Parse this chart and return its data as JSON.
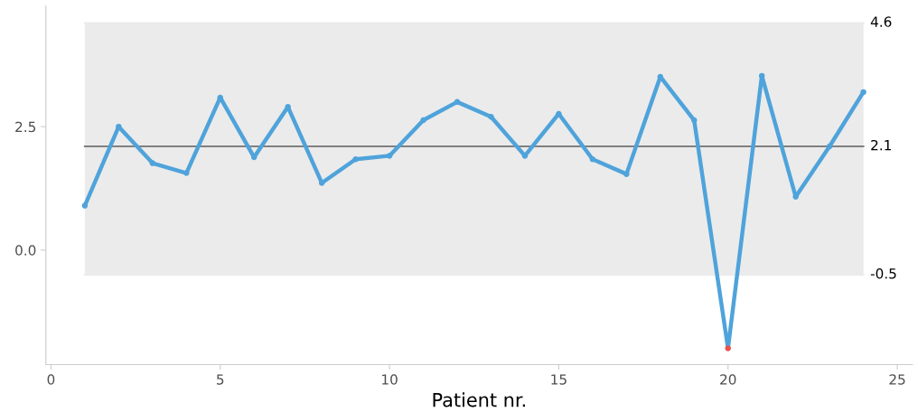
{
  "chart_data": {
    "type": "line",
    "xlabel": "Patient nr.",
    "x": [
      1,
      2,
      3,
      4,
      5,
      6,
      7,
      8,
      9,
      10,
      11,
      12,
      13,
      14,
      15,
      16,
      17,
      18,
      19,
      20,
      21,
      22,
      23,
      24
    ],
    "series": [
      {
        "color": "#4fa3db",
        "colors": [
          "#4fa3db",
          "#4fa3db",
          "#4fa3db",
          "#4fa3db",
          "#4fa3db",
          "#4fa3db",
          "#4fa3db",
          "#4fa3db",
          "#4fa3db",
          "#4fa3db",
          "#4fa3db",
          "#4fa3db",
          "#4fa3db",
          "#4fa3db",
          "#4fa3db",
          "#4fa3db",
          "#4fa3db",
          "#4fa3db",
          "#4fa3db",
          "#e8524a",
          "#4fa3db",
          "#4fa3db",
          "#4fa3db",
          "#4fa3db"
        ],
        "values": [
          0.9,
          2.5,
          1.76,
          1.56,
          3.09,
          1.88,
          2.9,
          1.36,
          1.84,
          1.91,
          2.63,
          3.0,
          2.7,
          1.91,
          2.76,
          1.84,
          1.54,
          3.51,
          2.63,
          -1.99,
          3.53,
          1.08,
          2.1,
          3.2
        ]
      }
    ],
    "marker": "circle",
    "line_style": "solid",
    "xlim": [
      -0.15,
      25.45
    ],
    "xticks": [
      0,
      5,
      10,
      15,
      20,
      25
    ],
    "ylim": [
      -2.32,
      4.94
    ],
    "yticks": [
      {
        "value": 0,
        "label": "0.0"
      },
      2.5
    ],
    "grid": false,
    "bands": [
      {
        "axis": "y",
        "from": -0.5,
        "to": 4.6,
        "color": "#ebebeb"
      }
    ],
    "ref_lines": [
      {
        "axis": "y",
        "value": 4.6,
        "label": "4.6",
        "color": "#ebebeb",
        "line_style": "solid"
      },
      {
        "axis": "y",
        "value": 2.1,
        "label": "2.1",
        "color": "#808080",
        "line_style": "solid"
      },
      {
        "axis": "y",
        "value": -0.5,
        "label": "-0.5",
        "color": "#ebebeb",
        "line_style": "solid"
      }
    ]
  }
}
